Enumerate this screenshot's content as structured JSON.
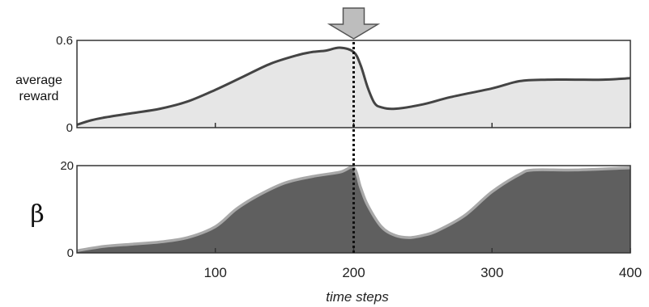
{
  "chart_data": [
    {
      "type": "area",
      "ylabel_lines": [
        "average",
        "reward"
      ],
      "ylim": [
        0,
        0.6
      ],
      "xlim": [
        0,
        400
      ],
      "yticks": [
        "0",
        "0.6"
      ],
      "fill": "#e6e6e6",
      "line": "#444444",
      "x": [
        0,
        10,
        20,
        40,
        60,
        80,
        100,
        120,
        140,
        160,
        170,
        180,
        190,
        200,
        205,
        210,
        215,
        220,
        230,
        250,
        270,
        300,
        320,
        340,
        360,
        380,
        400
      ],
      "y": [
        0.02,
        0.05,
        0.07,
        0.1,
        0.13,
        0.18,
        0.26,
        0.35,
        0.44,
        0.5,
        0.52,
        0.53,
        0.55,
        0.52,
        0.43,
        0.28,
        0.17,
        0.14,
        0.13,
        0.16,
        0.21,
        0.27,
        0.32,
        0.33,
        0.33,
        0.33,
        0.34
      ]
    },
    {
      "type": "area",
      "ylabel": "β",
      "ylim": [
        0,
        20
      ],
      "xlim": [
        0,
        400
      ],
      "yticks": [
        "0",
        "20"
      ],
      "fill": "#5f5f5f",
      "line": "#a8a8a8",
      "x": [
        0,
        20,
        40,
        60,
        80,
        100,
        115,
        130,
        150,
        170,
        190,
        200,
        205,
        210,
        220,
        230,
        240,
        250,
        260,
        280,
        300,
        320,
        330,
        360,
        400
      ],
      "y": [
        0.5,
        1.5,
        2,
        2.5,
        3.5,
        6,
        10,
        13,
        16,
        17.5,
        18.5,
        19.5,
        15,
        11,
        6,
        4,
        3.5,
        4,
        5,
        8.5,
        14,
        18,
        19,
        19,
        19.5
      ]
    }
  ],
  "x_ticks": [
    "100",
    "200",
    "300",
    "400"
  ],
  "x_tick_values": [
    100,
    200,
    300,
    400
  ],
  "xlabel": "time steps",
  "marker_x": 200
}
